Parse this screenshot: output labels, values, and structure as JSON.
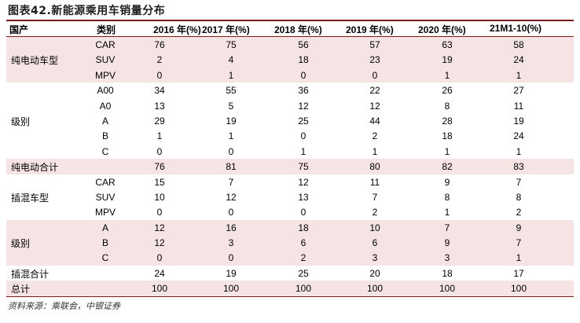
{
  "title": "图表42.新能源乘用车销量分布",
  "headers": [
    "国产",
    "类别",
    "2016 年(%)",
    "2017 年(%)",
    "2018 年(%)",
    "2019 年(%)",
    "2020 年(%)",
    "21M1-10(%)"
  ],
  "rows": [
    {
      "cat": "CAR",
      "values": [
        "76",
        "75",
        "56",
        "57",
        "63",
        "58"
      ]
    },
    {
      "cat": "SUV",
      "values": [
        "2",
        "4",
        "18",
        "23",
        "19",
        "24"
      ]
    },
    {
      "cat": "MPV",
      "values": [
        "0",
        "1",
        "0",
        "0",
        "1",
        "1"
      ]
    },
    {
      "cat": "A00",
      "values": [
        "34",
        "55",
        "36",
        "22",
        "26",
        "27"
      ]
    },
    {
      "cat": "A0",
      "values": [
        "13",
        "5",
        "12",
        "12",
        "8",
        "11"
      ]
    },
    {
      "cat": "A",
      "values": [
        "29",
        "19",
        "25",
        "44",
        "28",
        "19"
      ]
    },
    {
      "cat": "B",
      "values": [
        "1",
        "1",
        "0",
        "2",
        "18",
        "24"
      ]
    },
    {
      "cat": "C",
      "values": [
        "0",
        "0",
        "1",
        "1",
        "1",
        "1"
      ]
    },
    {
      "cat": "",
      "values": [
        "76",
        "81",
        "75",
        "80",
        "82",
        "83"
      ]
    },
    {
      "cat": "CAR",
      "values": [
        "15",
        "7",
        "12",
        "11",
        "9",
        "7"
      ]
    },
    {
      "cat": "SUV",
      "values": [
        "10",
        "12",
        "13",
        "7",
        "8",
        "8"
      ]
    },
    {
      "cat": "MPV",
      "values": [
        "0",
        "0",
        "0",
        "2",
        "1",
        "2"
      ]
    },
    {
      "cat": "A",
      "values": [
        "12",
        "16",
        "18",
        "10",
        "7",
        "9"
      ]
    },
    {
      "cat": "B",
      "values": [
        "12",
        "3",
        "6",
        "6",
        "9",
        "7"
      ]
    },
    {
      "cat": "C",
      "values": [
        "0",
        "0",
        "2",
        "3",
        "3",
        "1"
      ]
    },
    {
      "cat": "",
      "values": [
        "24",
        "19",
        "25",
        "20",
        "18",
        "17"
      ]
    },
    {
      "cat": "",
      "values": [
        "100",
        "100",
        "100",
        "100",
        "100",
        "100"
      ]
    }
  ],
  "groups": [
    {
      "label": "纯电动车型",
      "start": 0,
      "span": 3,
      "shaded": true
    },
    {
      "label": "级别",
      "start": 3,
      "span": 5,
      "shaded": false
    },
    {
      "label": "纯电动合计",
      "start": 8,
      "span": 1,
      "shaded": true
    },
    {
      "label": "插混车型",
      "start": 9,
      "span": 3,
      "shaded": false
    },
    {
      "label": "级别",
      "start": 12,
      "span": 3,
      "shaded": true
    },
    {
      "label": "插混合计",
      "start": 15,
      "span": 1,
      "shaded": false
    },
    {
      "label": "总计",
      "start": 16,
      "span": 1,
      "shaded": true
    }
  ],
  "source": "资料来源：乘联会，中银证券"
}
